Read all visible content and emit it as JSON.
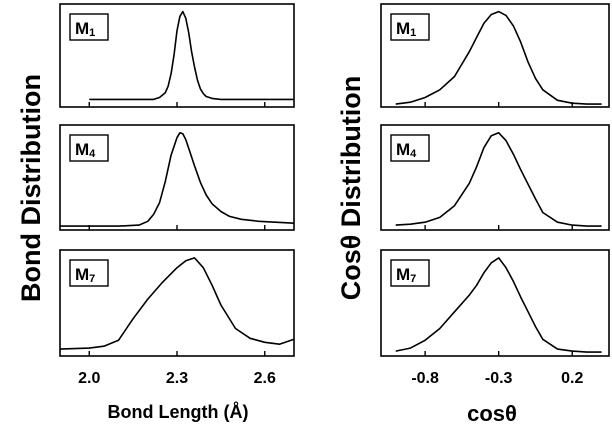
{
  "figure": {
    "left_ylabel": "Bond Distribution",
    "right_ylabel": "Cosθ Distribution"
  },
  "chart_data": [
    {
      "type": "line",
      "xlabel": "Bond Length (Å)",
      "xlim": [
        1.9,
        2.7
      ],
      "xticks": [
        2.0,
        2.3,
        2.6
      ],
      "xtick_labels": [
        "2.0",
        "2.3",
        "2.6"
      ],
      "grid": false,
      "panels": [
        {
          "label": "M1",
          "label_main": "M",
          "label_sub": "1",
          "ylim": [
            0,
            1.08
          ],
          "x": [
            2.0,
            2.1,
            2.18,
            2.22,
            2.24,
            2.26,
            2.27,
            2.28,
            2.29,
            2.3,
            2.31,
            2.32,
            2.33,
            2.34,
            2.35,
            2.36,
            2.37,
            2.38,
            2.39,
            2.4,
            2.42,
            2.45,
            2.5,
            2.6,
            2.7
          ],
          "y": [
            0.08,
            0.08,
            0.08,
            0.08,
            0.1,
            0.15,
            0.22,
            0.35,
            0.55,
            0.8,
            0.95,
            1.0,
            0.93,
            0.78,
            0.58,
            0.42,
            0.28,
            0.19,
            0.14,
            0.11,
            0.09,
            0.08,
            0.08,
            0.08,
            0.08
          ]
        },
        {
          "label": "M4",
          "label_main": "M",
          "label_sub": "4",
          "ylim": [
            0,
            1.08
          ],
          "x": [
            1.9,
            2.1,
            2.17,
            2.2,
            2.22,
            2.24,
            2.26,
            2.28,
            2.3,
            2.31,
            2.32,
            2.33,
            2.34,
            2.36,
            2.38,
            2.4,
            2.42,
            2.45,
            2.48,
            2.52,
            2.58,
            2.7
          ],
          "y": [
            0.04,
            0.04,
            0.05,
            0.09,
            0.16,
            0.28,
            0.5,
            0.77,
            0.95,
            1.0,
            0.99,
            0.93,
            0.84,
            0.66,
            0.49,
            0.36,
            0.27,
            0.19,
            0.14,
            0.11,
            0.09,
            0.07
          ]
        },
        {
          "label": "M7",
          "label_main": "M",
          "label_sub": "7",
          "ylim": [
            0,
            1.08
          ],
          "x": [
            1.9,
            2.0,
            2.05,
            2.1,
            2.15,
            2.2,
            2.25,
            2.3,
            2.33,
            2.36,
            2.39,
            2.42,
            2.45,
            2.5,
            2.55,
            2.6,
            2.65,
            2.7
          ],
          "y": [
            0.07,
            0.08,
            0.1,
            0.16,
            0.38,
            0.58,
            0.75,
            0.9,
            0.97,
            1.0,
            0.9,
            0.72,
            0.52,
            0.28,
            0.18,
            0.14,
            0.12,
            0.17
          ]
        }
      ]
    },
    {
      "type": "line",
      "xlabel": "cosθ",
      "xlim": [
        -1.1,
        0.45
      ],
      "xticks": [
        -0.8,
        -0.3,
        0.2
      ],
      "xtick_labels": [
        "-0.8",
        "-0.3",
        "0.2"
      ],
      "grid": false,
      "panels": [
        {
          "label": "M1",
          "label_main": "M",
          "label_sub": "1",
          "ylim": [
            0,
            1.08
          ],
          "x": [
            -1.0,
            -0.9,
            -0.8,
            -0.7,
            -0.6,
            -0.5,
            -0.45,
            -0.4,
            -0.35,
            -0.3,
            -0.25,
            -0.2,
            -0.15,
            -0.1,
            -0.05,
            0.0,
            0.1,
            0.2,
            0.3,
            0.4
          ],
          "y": [
            0.03,
            0.05,
            0.1,
            0.18,
            0.32,
            0.58,
            0.73,
            0.88,
            0.97,
            1.0,
            0.96,
            0.85,
            0.68,
            0.47,
            0.3,
            0.18,
            0.07,
            0.04,
            0.03,
            0.03
          ]
        },
        {
          "label": "M4",
          "label_main": "M",
          "label_sub": "4",
          "ylim": [
            0,
            1.08
          ],
          "x": [
            -1.0,
            -0.9,
            -0.8,
            -0.7,
            -0.6,
            -0.5,
            -0.45,
            -0.4,
            -0.35,
            -0.3,
            -0.25,
            -0.2,
            -0.15,
            -0.1,
            -0.05,
            0.0,
            0.1,
            0.2,
            0.3,
            0.4
          ],
          "y": [
            0.05,
            0.06,
            0.08,
            0.13,
            0.25,
            0.48,
            0.65,
            0.85,
            0.97,
            1.0,
            0.92,
            0.78,
            0.62,
            0.47,
            0.32,
            0.18,
            0.08,
            0.05,
            0.04,
            0.04
          ]
        },
        {
          "label": "M7",
          "label_main": "M",
          "label_sub": "7",
          "ylim": [
            0,
            1.08
          ],
          "x": [
            -1.0,
            -0.9,
            -0.8,
            -0.7,
            -0.6,
            -0.5,
            -0.45,
            -0.4,
            -0.35,
            -0.3,
            -0.25,
            -0.2,
            -0.15,
            -0.1,
            -0.05,
            0.0,
            0.1,
            0.2,
            0.3,
            0.4
          ],
          "y": [
            0.05,
            0.08,
            0.16,
            0.28,
            0.45,
            0.62,
            0.72,
            0.85,
            0.95,
            1.0,
            0.9,
            0.76,
            0.6,
            0.45,
            0.3,
            0.17,
            0.07,
            0.05,
            0.04,
            0.04
          ]
        }
      ]
    }
  ]
}
